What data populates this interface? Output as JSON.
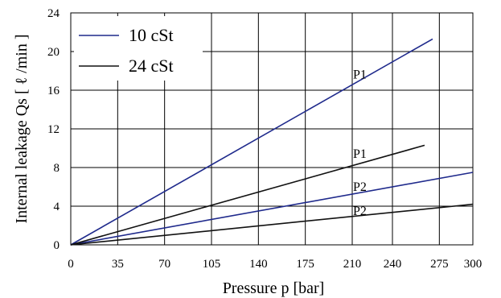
{
  "chart_data": {
    "type": "line",
    "xlabel": "Pressure  p  [bar]",
    "ylabel": "Internal  leakage Qs [  ℓ /min ]",
    "xlim": [
      0,
      300
    ],
    "ylim": [
      0,
      24
    ],
    "x_ticks": [
      0,
      35,
      70,
      105,
      140,
      175,
      210,
      240,
      275,
      300
    ],
    "y_ticks": [
      0,
      4,
      8,
      12,
      16,
      20,
      24
    ],
    "grid": true,
    "legend_position": "top-left",
    "colors": {
      "10cSt": "#1f2a8c",
      "24cSt": "#111111"
    },
    "series": [
      {
        "name": "10 cSt",
        "label": "P1",
        "color": "#1f2a8c",
        "x": [
          0,
          270
        ],
        "y": [
          0,
          21.3
        ]
      },
      {
        "name": "10 cSt",
        "label": "P2",
        "color": "#1f2a8c",
        "x": [
          0,
          300
        ],
        "y": [
          0,
          7.5
        ]
      },
      {
        "name": "24 cSt",
        "label": "P1",
        "color": "#111111",
        "x": [
          0,
          264
        ],
        "y": [
          0,
          10.3
        ]
      },
      {
        "name": "24 cSt",
        "label": "P2",
        "color": "#111111",
        "x": [
          0,
          300
        ],
        "y": [
          0,
          4.2
        ]
      }
    ],
    "legend": [
      {
        "text": "10 cSt",
        "color": "#1f2a8c"
      },
      {
        "text": "24 cSt",
        "color": "#111111"
      }
    ],
    "curve_labels": [
      {
        "text": "P1",
        "x": 207,
        "y": 17.2
      },
      {
        "text": "P1",
        "x": 207,
        "y": 9.0
      },
      {
        "text": "P2",
        "x": 207,
        "y": 5.6
      },
      {
        "text": "P2",
        "x": 207,
        "y": 3.1
      }
    ]
  }
}
